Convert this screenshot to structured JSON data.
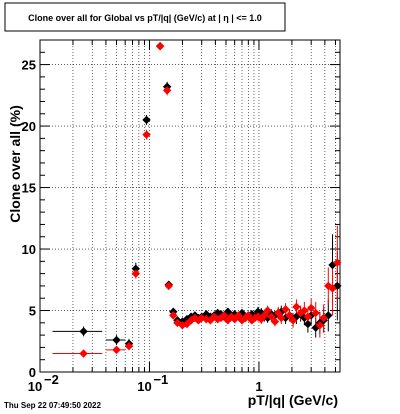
{
  "chart_data": {
    "type": "scatter",
    "title": "Clone  over all for Global vs pT/|q| (GeV/c) at |  η  | <= 1.0",
    "xlabel": "pT/|q| (GeV/c)",
    "ylabel": "Clone  over all (%)",
    "xscale": "log",
    "xlim": [
      0.01,
      5.5
    ],
    "ylim": [
      0,
      27
    ],
    "grid": true,
    "x_ticks": [
      0.01,
      0.1,
      1
    ],
    "x_tick_labels": [
      "10",
      "10",
      "1"
    ],
    "x_tick_exponents": [
      "−2",
      "−1",
      ""
    ],
    "y_ticks": [
      0,
      5,
      10,
      15,
      20,
      25
    ],
    "y_tick_labels": [
      "0",
      "5",
      "10",
      "15",
      "20",
      "25"
    ],
    "series": [
      {
        "color": "#000000",
        "marker": "diamond",
        "x": [
          0.025,
          0.05,
          0.065,
          0.075,
          0.094,
          0.125,
          0.145,
          0.15,
          0.165,
          0.18,
          0.2,
          0.22,
          0.24,
          0.26,
          0.28,
          0.3,
          0.33,
          0.36,
          0.39,
          0.42,
          0.45,
          0.48,
          0.52,
          0.56,
          0.6,
          0.65,
          0.7,
          0.75,
          0.8,
          0.86,
          0.92,
          0.98,
          1.05,
          1.12,
          1.2,
          1.3,
          1.4,
          1.5,
          1.6,
          1.75,
          1.9,
          2.05,
          2.2,
          2.4,
          2.6,
          2.8,
          3.0,
          3.3,
          3.6,
          3.9,
          4.3,
          4.7,
          5.2
        ],
        "y": [
          3.3,
          2.6,
          2.3,
          8.4,
          20.5,
          26.5,
          23.2,
          7.1,
          4.9,
          4.2,
          4.1,
          4.3,
          4.5,
          4.6,
          4.4,
          4.5,
          4.7,
          4.5,
          4.6,
          4.8,
          4.7,
          4.5,
          4.9,
          4.6,
          4.7,
          4.5,
          4.8,
          4.4,
          4.6,
          4.7,
          4.5,
          4.9,
          4.8,
          4.5,
          4.4,
          4.7,
          4.6,
          4.8,
          4.9,
          4.4,
          4.6,
          4.3,
          4.5,
          4.7,
          4.4,
          3.9,
          4.6,
          3.6,
          4.0,
          4.2,
          4.6,
          8.7,
          7.0
        ]
      },
      {
        "color": "#ff0000",
        "marker": "diamond",
        "x": [
          0.025,
          0.05,
          0.065,
          0.075,
          0.094,
          0.125,
          0.145,
          0.15,
          0.165,
          0.18,
          0.2,
          0.22,
          0.24,
          0.26,
          0.28,
          0.3,
          0.33,
          0.36,
          0.39,
          0.42,
          0.45,
          0.48,
          0.52,
          0.56,
          0.6,
          0.65,
          0.7,
          0.75,
          0.8,
          0.86,
          0.92,
          0.98,
          1.05,
          1.12,
          1.2,
          1.3,
          1.4,
          1.5,
          1.6,
          1.75,
          1.9,
          2.05,
          2.2,
          2.4,
          2.6,
          2.8,
          3.0,
          3.3,
          3.6,
          3.9,
          4.3,
          4.7,
          5.2
        ],
        "y": [
          1.5,
          1.8,
          2.1,
          8.0,
          19.3,
          26.5,
          22.9,
          7.0,
          4.6,
          4.0,
          3.8,
          3.9,
          4.2,
          4.4,
          4.2,
          4.4,
          4.3,
          4.2,
          4.5,
          4.3,
          4.4,
          4.6,
          4.2,
          4.5,
          4.3,
          4.6,
          4.2,
          4.4,
          4.6,
          4.2,
          4.4,
          4.5,
          4.3,
          4.6,
          5.0,
          4.5,
          4.1,
          4.8,
          4.4,
          5.1,
          4.6,
          4.2,
          5.3,
          4.8,
          5.0,
          4.5,
          5.2,
          4.8,
          3.8,
          4.4,
          7.0,
          6.8,
          8.9
        ]
      }
    ],
    "error_bars": {
      "black": [
        0.4,
        0.4,
        0.4,
        0.5,
        0.4,
        0.3,
        0.4,
        0.3,
        0.3,
        0.3,
        0.3,
        0.3,
        0.3,
        0.3,
        0.3,
        0.3,
        0.3,
        0.3,
        0.3,
        0.3,
        0.3,
        0.3,
        0.3,
        0.3,
        0.3,
        0.3,
        0.3,
        0.3,
        0.3,
        0.3,
        0.3,
        0.4,
        0.4,
        0.4,
        0.4,
        0.4,
        0.4,
        0.4,
        0.5,
        0.5,
        0.5,
        0.5,
        0.6,
        0.6,
        0.6,
        0.7,
        0.7,
        0.8,
        0.9,
        1.0,
        1.3,
        2.5,
        2.8
      ],
      "red": [
        0.3,
        0.3,
        0.3,
        0.4,
        0.4,
        0.3,
        0.4,
        0.3,
        0.3,
        0.3,
        0.3,
        0.3,
        0.3,
        0.3,
        0.3,
        0.3,
        0.3,
        0.3,
        0.3,
        0.3,
        0.3,
        0.3,
        0.3,
        0.3,
        0.3,
        0.3,
        0.3,
        0.3,
        0.3,
        0.3,
        0.3,
        0.4,
        0.4,
        0.4,
        0.4,
        0.4,
        0.4,
        0.5,
        0.5,
        0.5,
        0.5,
        0.6,
        0.6,
        0.6,
        0.7,
        0.7,
        0.8,
        0.9,
        1.0,
        1.1,
        1.5,
        2.2,
        3.0
      ]
    },
    "x_half_widths_low": [
      0.012,
      0.01,
      0.004,
      0.004,
      0.005,
      0.006,
      0.003,
      0.003,
      0.007,
      0.008,
      0.009,
      0.01,
      0.01,
      0.01,
      0.01,
      0.012,
      0.013,
      0.014,
      0.015,
      0.016,
      0.017,
      0.018,
      0.02,
      0.02,
      0.02,
      0.025,
      0.025,
      0.025,
      0.03,
      0.03,
      0.03,
      0.03,
      0.035,
      0.035,
      0.04,
      0.05,
      0.05,
      0.05,
      0.05,
      0.07,
      0.07,
      0.07,
      0.08,
      0.1,
      0.1,
      0.1,
      0.1,
      0.15,
      0.15,
      0.15,
      0.2,
      0.2,
      0.25
    ]
  },
  "footer": {
    "timestamp": "Thu Sep 22 07:49:50 2022"
  }
}
